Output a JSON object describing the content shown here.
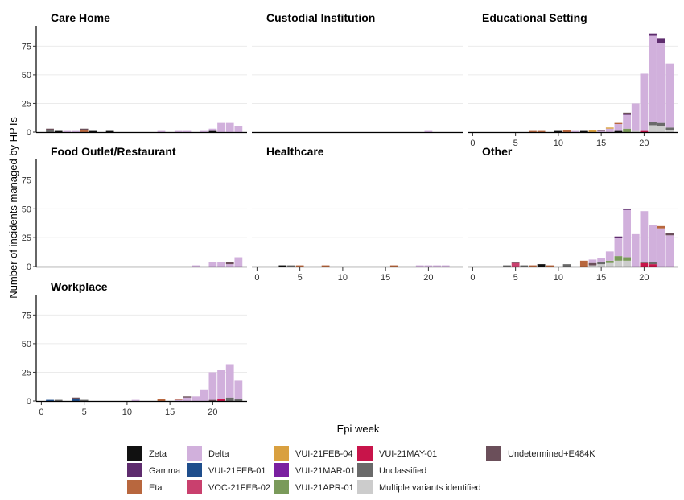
{
  "chart_data": {
    "type": "bar",
    "stacked": true,
    "xlabel": "Epi week",
    "ylabel": "Number of incidents managed by HPTs",
    "ylim": [
      0,
      90
    ],
    "y_ticks": [
      0,
      25,
      50,
      75
    ],
    "x_ticks": [
      0,
      5,
      10,
      15,
      20
    ],
    "grid": "horizontal major",
    "legend_position": "bottom",
    "variants": [
      {
        "name": "Zeta",
        "color": "#111111"
      },
      {
        "name": "Gamma",
        "color": "#5e2c6e"
      },
      {
        "name": "Eta",
        "color": "#b8673e"
      },
      {
        "name": "Delta",
        "color": "#d1b0dc"
      },
      {
        "name": "VUI-21FEB-01",
        "color": "#1f4e8c"
      },
      {
        "name": "VOC-21FEB-02",
        "color": "#c9406e"
      },
      {
        "name": "VUI-21FEB-04",
        "color": "#d9a040"
      },
      {
        "name": "VUI-21MAR-01",
        "color": "#7a1fa0"
      },
      {
        "name": "VUI-21APR-01",
        "color": "#7a9a5a"
      },
      {
        "name": "VUI-21MAY-01",
        "color": "#c8144a"
      },
      {
        "name": "Unclassified",
        "color": "#6a6a6a"
      },
      {
        "name": "Multiple variants identified",
        "color": "#cccccc"
      },
      {
        "name": "Undetermined+E484K",
        "color": "#6b4f5a"
      }
    ],
    "facets": [
      {
        "title": "Care Home",
        "bars": [
          {
            "week": 1,
            "stack": [
              [
                "Unclassified",
                2
              ],
              [
                "Undetermined+E484K",
                1
              ]
            ]
          },
          {
            "week": 2,
            "stack": [
              [
                "Zeta",
                1
              ]
            ]
          },
          {
            "week": 3,
            "stack": [
              [
                "Delta",
                1
              ]
            ]
          },
          {
            "week": 4,
            "stack": [
              [
                "Delta",
                1
              ]
            ]
          },
          {
            "week": 5,
            "stack": [
              [
                "Eta",
                2
              ],
              [
                "Undetermined+E484K",
                1
              ]
            ]
          },
          {
            "week": 6,
            "stack": [
              [
                "Zeta",
                1
              ]
            ]
          },
          {
            "week": 8,
            "stack": [
              [
                "Zeta",
                1
              ]
            ]
          },
          {
            "week": 14,
            "stack": [
              [
                "Delta",
                1
              ]
            ]
          },
          {
            "week": 16,
            "stack": [
              [
                "Delta",
                1
              ]
            ]
          },
          {
            "week": 17,
            "stack": [
              [
                "Delta",
                1
              ]
            ]
          },
          {
            "week": 19,
            "stack": [
              [
                "Delta",
                1
              ]
            ]
          },
          {
            "week": 20,
            "stack": [
              [
                "Zeta",
                1
              ],
              [
                "Delta",
                2
              ]
            ]
          },
          {
            "week": 21,
            "stack": [
              [
                "Delta",
                8
              ]
            ]
          },
          {
            "week": 22,
            "stack": [
              [
                "Delta",
                8
              ]
            ]
          },
          {
            "week": 23,
            "stack": [
              [
                "Delta",
                5
              ]
            ]
          }
        ]
      },
      {
        "title": "Custodial Institution",
        "bars": [
          {
            "week": 20,
            "stack": [
              [
                "Delta",
                1
              ]
            ]
          }
        ]
      },
      {
        "title": "Educational Setting",
        "bars": [
          {
            "week": 7,
            "stack": [
              [
                "Eta",
                1
              ]
            ]
          },
          {
            "week": 8,
            "stack": [
              [
                "Eta",
                1
              ]
            ]
          },
          {
            "week": 10,
            "stack": [
              [
                "Zeta",
                1
              ]
            ]
          },
          {
            "week": 11,
            "stack": [
              [
                "Eta",
                2
              ]
            ]
          },
          {
            "week": 12,
            "stack": [
              [
                "Delta",
                1
              ]
            ]
          },
          {
            "week": 13,
            "stack": [
              [
                "Zeta",
                1
              ]
            ]
          },
          {
            "week": 14,
            "stack": [
              [
                "VUI-21FEB-04",
                2
              ]
            ]
          },
          {
            "week": 15,
            "stack": [
              [
                "Delta",
                1
              ],
              [
                "Undetermined+E484K",
                1
              ]
            ]
          },
          {
            "week": 16,
            "stack": [
              [
                "Delta",
                3
              ],
              [
                "VUI-21FEB-04",
                1
              ]
            ]
          },
          {
            "week": 17,
            "stack": [
              [
                "Zeta",
                1
              ],
              [
                "Delta",
                6
              ],
              [
                "Eta",
                1
              ]
            ]
          },
          {
            "week": 18,
            "stack": [
              [
                "VUI-21APR-01",
                3
              ],
              [
                "Delta",
                12
              ],
              [
                "Gamma",
                1
              ],
              [
                "Undetermined+E484K",
                1
              ]
            ]
          },
          {
            "week": 19,
            "stack": [
              [
                "Multiple variants identified",
                1
              ],
              [
                "Delta",
                24
              ]
            ]
          },
          {
            "week": 20,
            "stack": [
              [
                "VUI-21MAY-01",
                1
              ],
              [
                "Delta",
                50
              ]
            ]
          },
          {
            "week": 21,
            "stack": [
              [
                "Multiple variants identified",
                6
              ],
              [
                "Unclassified",
                3
              ],
              [
                "Delta",
                75
              ],
              [
                "Gamma",
                2
              ]
            ]
          },
          {
            "week": 22,
            "stack": [
              [
                "Multiple variants identified",
                5
              ],
              [
                "Unclassified",
                3
              ],
              [
                "Delta",
                70
              ],
              [
                "Gamma",
                4
              ]
            ]
          },
          {
            "week": 23,
            "stack": [
              [
                "Multiple variants identified",
                2
              ],
              [
                "Unclassified",
                2
              ],
              [
                "Delta",
                56
              ]
            ]
          }
        ]
      },
      {
        "title": "Food Outlet/Restaurant",
        "bars": [
          {
            "week": 18,
            "stack": [
              [
                "Delta",
                1
              ]
            ]
          },
          {
            "week": 20,
            "stack": [
              [
                "Delta",
                4
              ]
            ]
          },
          {
            "week": 21,
            "stack": [
              [
                "Delta",
                4
              ]
            ]
          },
          {
            "week": 22,
            "stack": [
              [
                "Delta",
                2
              ],
              [
                "Undetermined+E484K",
                2
              ]
            ]
          },
          {
            "week": 23,
            "stack": [
              [
                "Delta",
                8
              ]
            ]
          }
        ]
      },
      {
        "title": "Healthcare",
        "bars": [
          {
            "week": 3,
            "stack": [
              [
                "Zeta",
                1
              ]
            ]
          },
          {
            "week": 4,
            "stack": [
              [
                "Unclassified",
                1
              ]
            ]
          },
          {
            "week": 5,
            "stack": [
              [
                "Eta",
                1
              ]
            ]
          },
          {
            "week": 8,
            "stack": [
              [
                "Eta",
                1
              ]
            ]
          },
          {
            "week": 16,
            "stack": [
              [
                "Eta",
                1
              ]
            ]
          },
          {
            "week": 19,
            "stack": [
              [
                "Delta",
                1
              ]
            ]
          },
          {
            "week": 20,
            "stack": [
              [
                "Delta",
                1
              ]
            ]
          },
          {
            "week": 21,
            "stack": [
              [
                "Delta",
                1
              ]
            ]
          },
          {
            "week": 22,
            "stack": [
              [
                "Delta",
                1
              ]
            ]
          }
        ]
      },
      {
        "title": "Other",
        "bars": [
          {
            "week": 4,
            "stack": [
              [
                "Unclassified",
                1
              ]
            ]
          },
          {
            "week": 5,
            "stack": [
              [
                "VOC-21FEB-02",
                3
              ],
              [
                "Undetermined+E484K",
                1
              ]
            ]
          },
          {
            "week": 6,
            "stack": [
              [
                "Unclassified",
                1
              ]
            ]
          },
          {
            "week": 7,
            "stack": [
              [
                "Eta",
                1
              ]
            ]
          },
          {
            "week": 8,
            "stack": [
              [
                "Zeta",
                2
              ]
            ]
          },
          {
            "week": 9,
            "stack": [
              [
                "Eta",
                1
              ]
            ]
          },
          {
            "week": 11,
            "stack": [
              [
                "Unclassified",
                2
              ]
            ]
          },
          {
            "week": 13,
            "stack": [
              [
                "Eta",
                5
              ]
            ]
          },
          {
            "week": 14,
            "stack": [
              [
                "Multiple variants identified",
                1
              ],
              [
                "Undetermined+E484K",
                2
              ],
              [
                "Delta",
                3
              ]
            ]
          },
          {
            "week": 15,
            "stack": [
              [
                "Multiple variants identified",
                2
              ],
              [
                "Unclassified",
                2
              ],
              [
                "Delta",
                3
              ]
            ]
          },
          {
            "week": 16,
            "stack": [
              [
                "Multiple variants identified",
                3
              ],
              [
                "VUI-21APR-01",
                2
              ],
              [
                "Delta",
                8
              ]
            ]
          },
          {
            "week": 17,
            "stack": [
              [
                "Multiple variants identified",
                5
              ],
              [
                "VUI-21APR-01",
                4
              ],
              [
                "Delta",
                16
              ],
              [
                "Gamma",
                1
              ]
            ]
          },
          {
            "week": 18,
            "stack": [
              [
                "Multiple variants identified",
                5
              ],
              [
                "VUI-21APR-01",
                3
              ],
              [
                "Delta",
                41
              ],
              [
                "Gamma",
                1
              ]
            ]
          },
          {
            "week": 19,
            "stack": [
              [
                "Delta",
                28
              ]
            ]
          },
          {
            "week": 20,
            "stack": [
              [
                "VUI-21MAY-01",
                3
              ],
              [
                "Unclassified",
                1
              ],
              [
                "Delta",
                44
              ]
            ]
          },
          {
            "week": 21,
            "stack": [
              [
                "VUI-21MAY-01",
                2
              ],
              [
                "Unclassified",
                2
              ],
              [
                "Delta",
                32
              ]
            ]
          },
          {
            "week": 22,
            "stack": [
              [
                "Delta",
                33
              ],
              [
                "Eta",
                2
              ]
            ]
          },
          {
            "week": 23,
            "stack": [
              [
                "Delta",
                27
              ],
              [
                "Undetermined+E484K",
                2
              ]
            ]
          }
        ]
      },
      {
        "title": "Workplace",
        "bars": [
          {
            "week": 1,
            "stack": [
              [
                "VUI-21FEB-01",
                1
              ]
            ]
          },
          {
            "week": 2,
            "stack": [
              [
                "Unclassified",
                1
              ]
            ]
          },
          {
            "week": 4,
            "stack": [
              [
                "VUI-21FEB-01",
                2
              ],
              [
                "Undetermined+E484K",
                1
              ]
            ]
          },
          {
            "week": 5,
            "stack": [
              [
                "Unclassified",
                1
              ]
            ]
          },
          {
            "week": 11,
            "stack": [
              [
                "Delta",
                1
              ]
            ]
          },
          {
            "week": 14,
            "stack": [
              [
                "Eta",
                2
              ]
            ]
          },
          {
            "week": 16,
            "stack": [
              [
                "Delta",
                1
              ],
              [
                "Eta",
                1
              ]
            ]
          },
          {
            "week": 17,
            "stack": [
              [
                "Delta",
                3
              ],
              [
                "Undetermined+E484K",
                1
              ]
            ]
          },
          {
            "week": 18,
            "stack": [
              [
                "Delta",
                4
              ]
            ]
          },
          {
            "week": 19,
            "stack": [
              [
                "Delta",
                10
              ]
            ]
          },
          {
            "week": 20,
            "stack": [
              [
                "Undetermined+E484K",
                1
              ],
              [
                "Delta",
                24
              ]
            ]
          },
          {
            "week": 21,
            "stack": [
              [
                "VUI-21MAY-01",
                2
              ],
              [
                "Delta",
                25
              ]
            ]
          },
          {
            "week": 22,
            "stack": [
              [
                "Unclassified",
                3
              ],
              [
                "Delta",
                29
              ]
            ]
          },
          {
            "week": 23,
            "stack": [
              [
                "Unclassified",
                2
              ],
              [
                "Delta",
                16
              ]
            ]
          }
        ]
      }
    ]
  }
}
